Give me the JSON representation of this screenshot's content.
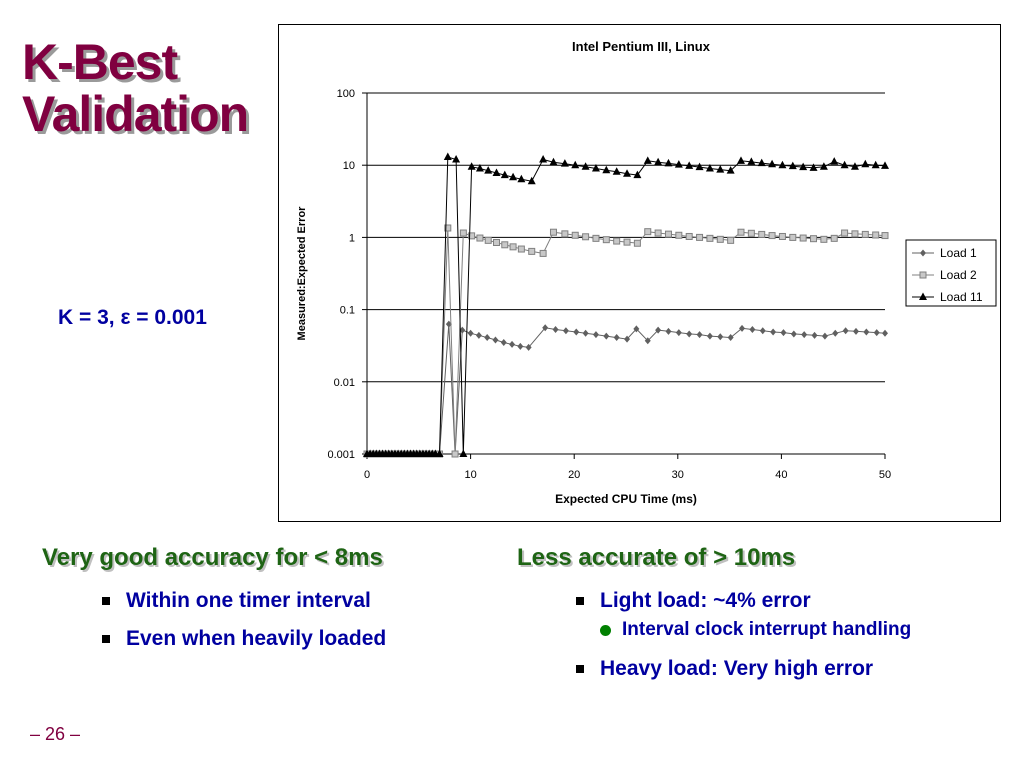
{
  "slide": {
    "title_line1": "K-Best",
    "title_line2": "Validation",
    "param_label": "K = 3, ε = 0.001",
    "page_number": "– 26 –"
  },
  "left_column": {
    "heading": "Very good accuracy for < 8ms",
    "bullets": [
      "Within one timer interval",
      "Even when heavily loaded"
    ]
  },
  "right_column": {
    "heading": "Less accurate of > 10ms",
    "bullet1": "Light load: ~4% error",
    "sub_bullet": "Interval clock interrupt handling",
    "bullet2": "Heavy load: Very high error"
  },
  "chart_data": {
    "type": "line",
    "title": "Intel Pentium III, Linux",
    "xlabel": "Expected CPU Time (ms)",
    "ylabel": "Measured:Expected Error",
    "xlim": [
      0,
      50
    ],
    "ylim": [
      0.001,
      100
    ],
    "y_scale": "log",
    "x_ticks": [
      "0",
      "10",
      "20",
      "30",
      "40",
      "50"
    ],
    "y_ticks": [
      "100",
      "10",
      "1",
      "0.1",
      "0.01",
      "0.001"
    ],
    "grid": "horizontal",
    "legend_position": "right",
    "series": [
      {
        "name": "Load 1",
        "marker": "diamond",
        "points": [
          [
            0,
            0.001
          ],
          [
            0.3,
            0.001
          ],
          [
            0.6,
            0.001
          ],
          [
            0.9,
            0.001
          ],
          [
            1.2,
            0.001
          ],
          [
            1.5,
            0.001
          ],
          [
            1.8,
            0.001
          ],
          [
            2.1,
            0.001
          ],
          [
            2.4,
            0.001
          ],
          [
            2.7,
            0.001
          ],
          [
            3.0,
            0.001
          ],
          [
            3.3,
            0.001
          ],
          [
            3.6,
            0.001
          ],
          [
            3.9,
            0.001
          ],
          [
            4.2,
            0.001
          ],
          [
            4.5,
            0.001
          ],
          [
            4.8,
            0.001
          ],
          [
            5.1,
            0.001
          ],
          [
            5.4,
            0.001
          ],
          [
            5.7,
            0.001
          ],
          [
            6.0,
            0.001
          ],
          [
            6.3,
            0.001
          ],
          [
            6.6,
            0.001
          ],
          [
            7.0,
            0.001
          ],
          [
            7.9,
            0.063
          ],
          [
            8.5,
            0.001
          ],
          [
            9.2,
            0.052
          ],
          [
            10.0,
            0.047
          ],
          [
            10.8,
            0.044
          ],
          [
            11.6,
            0.041
          ],
          [
            12.4,
            0.038
          ],
          [
            13.2,
            0.035
          ],
          [
            14.0,
            0.033
          ],
          [
            14.8,
            0.031
          ],
          [
            15.6,
            0.03
          ],
          [
            17.2,
            0.056
          ],
          [
            18.2,
            0.053
          ],
          [
            19.2,
            0.051
          ],
          [
            20.2,
            0.049
          ],
          [
            21.1,
            0.047
          ],
          [
            22.1,
            0.045
          ],
          [
            23.1,
            0.043
          ],
          [
            24.1,
            0.041
          ],
          [
            25.1,
            0.039
          ],
          [
            26.0,
            0.054
          ],
          [
            27.1,
            0.037
          ],
          [
            28.1,
            0.052
          ],
          [
            29.1,
            0.05
          ],
          [
            30.1,
            0.048
          ],
          [
            31.1,
            0.046
          ],
          [
            32.1,
            0.045
          ],
          [
            33.1,
            0.043
          ],
          [
            34.1,
            0.042
          ],
          [
            35.1,
            0.041
          ],
          [
            36.2,
            0.055
          ],
          [
            37.2,
            0.053
          ],
          [
            38.2,
            0.051
          ],
          [
            39.2,
            0.049
          ],
          [
            40.2,
            0.048
          ],
          [
            41.2,
            0.046
          ],
          [
            42.2,
            0.045
          ],
          [
            43.2,
            0.044
          ],
          [
            44.2,
            0.043
          ],
          [
            45.2,
            0.047
          ],
          [
            46.2,
            0.051
          ],
          [
            47.2,
            0.05
          ],
          [
            48.2,
            0.049
          ],
          [
            49.2,
            0.048
          ],
          [
            50,
            0.047
          ]
        ]
      },
      {
        "name": "Load 2",
        "marker": "square",
        "points": [
          [
            0,
            0.001
          ],
          [
            0.3,
            0.001
          ],
          [
            0.6,
            0.001
          ],
          [
            0.9,
            0.001
          ],
          [
            1.2,
            0.001
          ],
          [
            1.5,
            0.001
          ],
          [
            1.8,
            0.001
          ],
          [
            2.1,
            0.001
          ],
          [
            2.4,
            0.001
          ],
          [
            2.7,
            0.001
          ],
          [
            3.0,
            0.001
          ],
          [
            3.3,
            0.001
          ],
          [
            3.6,
            0.001
          ],
          [
            3.9,
            0.001
          ],
          [
            4.2,
            0.001
          ],
          [
            4.5,
            0.001
          ],
          [
            4.8,
            0.001
          ],
          [
            5.1,
            0.001
          ],
          [
            5.4,
            0.001
          ],
          [
            5.7,
            0.001
          ],
          [
            6.0,
            0.001
          ],
          [
            6.3,
            0.001
          ],
          [
            6.6,
            0.001
          ],
          [
            7.0,
            0.001
          ],
          [
            7.8,
            1.35
          ],
          [
            8.5,
            0.001
          ],
          [
            9.3,
            1.15
          ],
          [
            10.1,
            1.05
          ],
          [
            10.9,
            0.98
          ],
          [
            11.7,
            0.91
          ],
          [
            12.5,
            0.85
          ],
          [
            13.3,
            0.79
          ],
          [
            14.1,
            0.74
          ],
          [
            14.9,
            0.69
          ],
          [
            15.9,
            0.64
          ],
          [
            17.0,
            0.6
          ],
          [
            18.0,
            1.18
          ],
          [
            19.1,
            1.12
          ],
          [
            20.1,
            1.07
          ],
          [
            21.1,
            1.02
          ],
          [
            22.1,
            0.97
          ],
          [
            23.1,
            0.93
          ],
          [
            24.1,
            0.89
          ],
          [
            25.1,
            0.86
          ],
          [
            26.1,
            0.83
          ],
          [
            27.1,
            1.2
          ],
          [
            28.1,
            1.15
          ],
          [
            29.1,
            1.11
          ],
          [
            30.1,
            1.07
          ],
          [
            31.1,
            1.03
          ],
          [
            32.1,
            1.0
          ],
          [
            33.1,
            0.97
          ],
          [
            34.1,
            0.94
          ],
          [
            35.1,
            0.91
          ],
          [
            36.1,
            1.18
          ],
          [
            37.1,
            1.14
          ],
          [
            38.1,
            1.1
          ],
          [
            39.1,
            1.06
          ],
          [
            40.1,
            1.03
          ],
          [
            41.1,
            1.0
          ],
          [
            42.1,
            0.98
          ],
          [
            43.1,
            0.96
          ],
          [
            44.1,
            0.94
          ],
          [
            45.1,
            0.97
          ],
          [
            46.1,
            1.15
          ],
          [
            47.1,
            1.12
          ],
          [
            48.1,
            1.1
          ],
          [
            49.1,
            1.08
          ],
          [
            50,
            1.06
          ]
        ]
      },
      {
        "name": "Load 11",
        "marker": "triangle",
        "points": [
          [
            0,
            0.001
          ],
          [
            0.3,
            0.001
          ],
          [
            0.6,
            0.001
          ],
          [
            0.9,
            0.001
          ],
          [
            1.2,
            0.001
          ],
          [
            1.5,
            0.001
          ],
          [
            1.8,
            0.001
          ],
          [
            2.1,
            0.001
          ],
          [
            2.4,
            0.001
          ],
          [
            2.7,
            0.001
          ],
          [
            3.0,
            0.001
          ],
          [
            3.3,
            0.001
          ],
          [
            3.6,
            0.001
          ],
          [
            3.9,
            0.001
          ],
          [
            4.2,
            0.001
          ],
          [
            4.5,
            0.001
          ],
          [
            4.8,
            0.001
          ],
          [
            5.1,
            0.001
          ],
          [
            5.4,
            0.001
          ],
          [
            5.7,
            0.001
          ],
          [
            6.0,
            0.001
          ],
          [
            6.3,
            0.001
          ],
          [
            6.6,
            0.001
          ],
          [
            7.0,
            0.001
          ],
          [
            7.8,
            13
          ],
          [
            8.6,
            12
          ],
          [
            9.3,
            0.001
          ],
          [
            10.1,
            9.5
          ],
          [
            10.9,
            9.0
          ],
          [
            11.7,
            8.4
          ],
          [
            12.5,
            7.8
          ],
          [
            13.3,
            7.3
          ],
          [
            14.1,
            6.8
          ],
          [
            14.9,
            6.4
          ],
          [
            15.9,
            6.0
          ],
          [
            17.0,
            12
          ],
          [
            18.0,
            11
          ],
          [
            19.1,
            10.5
          ],
          [
            20.1,
            10
          ],
          [
            21.1,
            9.5
          ],
          [
            22.1,
            9.0
          ],
          [
            23.1,
            8.5
          ],
          [
            24.1,
            8.1
          ],
          [
            25.1,
            7.6
          ],
          [
            26.1,
            7.3
          ],
          [
            27.1,
            11.5
          ],
          [
            28.1,
            11
          ],
          [
            29.1,
            10.6
          ],
          [
            30.1,
            10.2
          ],
          [
            31.1,
            9.8
          ],
          [
            32.1,
            9.4
          ],
          [
            33.1,
            9.0
          ],
          [
            34.1,
            8.7
          ],
          [
            35.1,
            8.4
          ],
          [
            36.1,
            11.5
          ],
          [
            37.1,
            11.1
          ],
          [
            38.1,
            10.7
          ],
          [
            39.1,
            10.3
          ],
          [
            40.1,
            10
          ],
          [
            41.1,
            9.7
          ],
          [
            42.1,
            9.4
          ],
          [
            43.1,
            9.2
          ],
          [
            44.1,
            9.5
          ],
          [
            45.1,
            11.2
          ],
          [
            46.1,
            10
          ],
          [
            47.1,
            9.5
          ],
          [
            48.1,
            10.3
          ],
          [
            49.1,
            10
          ],
          [
            50,
            9.8
          ]
        ]
      }
    ]
  }
}
